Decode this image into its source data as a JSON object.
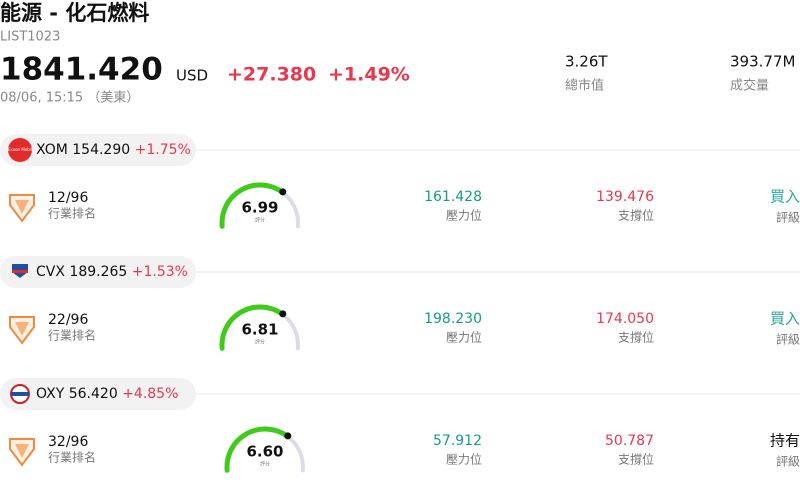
{
  "header": {
    "title": "能源 - 化石燃料",
    "code": "LIST1023",
    "price": "1841.420",
    "currency": "USD",
    "change": "+27.380",
    "change_pct": "+1.49%",
    "time": "08/06, 15:15 （美東）"
  },
  "stats": [
    {
      "value": "3.26T",
      "label": "總市值"
    },
    {
      "value": "393.77M",
      "label": "成交量"
    }
  ],
  "stocks": [
    {
      "ticker": "XOM",
      "price": "154.290",
      "change": "+1.75%",
      "logo_text": "Exxon Mobil",
      "rank": "12/96",
      "rank_label": "行業排名",
      "score": "6.99",
      "score_label": "評分",
      "resistance": "161.428",
      "resistance_label": "壓力位",
      "support": "139.476",
      "support_label": "支撐位",
      "rating": "買入",
      "rating_label": "評級",
      "rating_color": "#26a69a"
    },
    {
      "ticker": "CVX",
      "price": "189.265",
      "change": "+1.53%",
      "rank": "22/96",
      "rank_label": "行業排名",
      "score": "6.81",
      "score_label": "評分",
      "resistance": "198.230",
      "resistance_label": "壓力位",
      "support": "174.050",
      "support_label": "支撐位",
      "rating": "買入",
      "rating_label": "評級",
      "rating_color": "#26a69a"
    },
    {
      "ticker": "OXY",
      "price": "56.420",
      "change": "+4.85%",
      "rank": "32/96",
      "rank_label": "行業排名",
      "score": "6.60",
      "score_label": "評分",
      "resistance": "57.912",
      "resistance_label": "壓力位",
      "support": "50.787",
      "support_label": "支撐位",
      "rating": "持有",
      "rating_label": "評級",
      "rating_color": "#111111"
    }
  ]
}
